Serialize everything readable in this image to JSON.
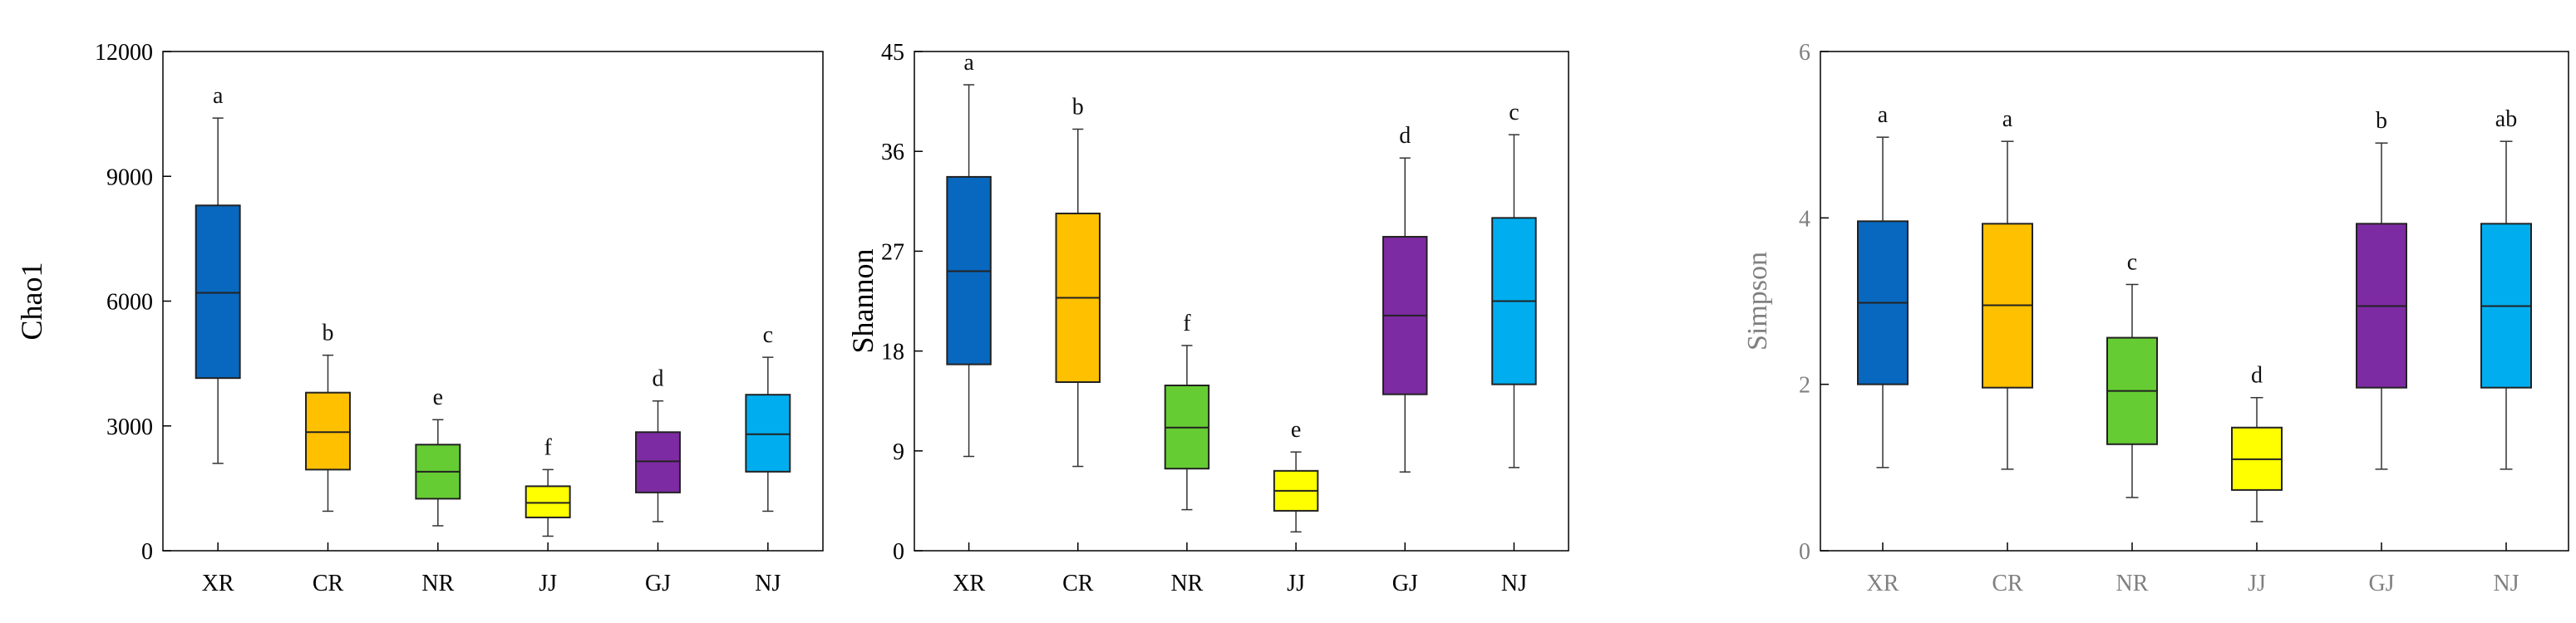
{
  "chart_data": [
    {
      "type": "boxplot",
      "ylabel": "Chao1",
      "ylim": [
        0,
        12000
      ],
      "yticks": [
        0,
        3000,
        6000,
        9000,
        12000
      ],
      "ytick_labels": [
        "0",
        "3000",
        "6000",
        "9000",
        "12000"
      ],
      "categories": [
        "XR",
        "CR",
        "NR",
        "JJ",
        "GJ",
        "NJ"
      ],
      "colors": [
        "#0868BF",
        "#FFC000",
        "#66CC33",
        "#FFFF00",
        "#7D2BA3",
        "#00AEEF"
      ],
      "boxes": [
        {
          "min": 2100,
          "q1": 4150,
          "median": 6200,
          "q3": 8300,
          "max": 10400,
          "letter": "a"
        },
        {
          "min": 950,
          "q1": 1950,
          "median": 2850,
          "q3": 3800,
          "max": 4700,
          "letter": "b"
        },
        {
          "min": 600,
          "q1": 1250,
          "median": 1900,
          "q3": 2550,
          "max": 3150,
          "letter": "e"
        },
        {
          "min": 350,
          "q1": 800,
          "median": 1150,
          "q3": 1550,
          "max": 1950,
          "letter": "f"
        },
        {
          "min": 700,
          "q1": 1400,
          "median": 2150,
          "q3": 2850,
          "max": 3600,
          "letter": "d"
        },
        {
          "min": 950,
          "q1": 1900,
          "median": 2800,
          "q3": 3750,
          "max": 4650,
          "letter": "c"
        }
      ]
    },
    {
      "type": "boxplot",
      "ylabel": "Shannon",
      "ylim": [
        0,
        45
      ],
      "yticks": [
        0,
        9,
        18,
        27,
        36,
        45
      ],
      "ytick_labels": [
        "0",
        "9",
        "18",
        "27",
        "36",
        "45"
      ],
      "categories": [
        "XR",
        "CR",
        "NR",
        "JJ",
        "GJ",
        "NJ"
      ],
      "colors": [
        "#0868BF",
        "#FFC000",
        "#66CC33",
        "#FFFF00",
        "#7D2BA3",
        "#00AEEF"
      ],
      "boxes": [
        {
          "min": 8.5,
          "q1": 16.8,
          "median": 25.2,
          "q3": 33.7,
          "max": 42.0,
          "letter": "a"
        },
        {
          "min": 7.6,
          "q1": 15.2,
          "median": 22.8,
          "q3": 30.4,
          "max": 38.0,
          "letter": "b"
        },
        {
          "min": 3.7,
          "q1": 7.4,
          "median": 11.1,
          "q3": 14.9,
          "max": 18.5,
          "letter": "f"
        },
        {
          "min": 1.7,
          "q1": 3.6,
          "median": 5.4,
          "q3": 7.2,
          "max": 8.9,
          "letter": "e"
        },
        {
          "min": 7.1,
          "q1": 14.1,
          "median": 21.2,
          "q3": 28.3,
          "max": 35.4,
          "letter": "d"
        },
        {
          "min": 7.5,
          "q1": 15.0,
          "median": 22.5,
          "q3": 30.0,
          "max": 37.5,
          "letter": "c"
        }
      ]
    },
    {
      "type": "boxplot",
      "ylabel": "Simpson",
      "ylim": [
        0,
        6
      ],
      "yticks": [
        0,
        2,
        4,
        6
      ],
      "ytick_labels": [
        "0",
        "2",
        "4",
        "6"
      ],
      "categories": [
        "XR",
        "CR",
        "NR",
        "JJ",
        "GJ",
        "NJ"
      ],
      "colors": [
        "#0868BF",
        "#FFC000",
        "#66CC33",
        "#FFFF00",
        "#7D2BA3",
        "#00AEEF"
      ],
      "boxes": [
        {
          "min": 1.0,
          "q1": 2.0,
          "median": 2.98,
          "q3": 3.96,
          "max": 4.97,
          "letter": "a"
        },
        {
          "min": 0.98,
          "q1": 1.96,
          "median": 2.95,
          "q3": 3.93,
          "max": 4.92,
          "letter": "a"
        },
        {
          "min": 0.64,
          "q1": 1.28,
          "median": 1.92,
          "q3": 2.56,
          "max": 3.2,
          "letter": "c"
        },
        {
          "min": 0.35,
          "q1": 0.73,
          "median": 1.1,
          "q3": 1.48,
          "max": 1.84,
          "letter": "d"
        },
        {
          "min": 0.98,
          "q1": 1.96,
          "median": 2.94,
          "q3": 3.93,
          "max": 4.9,
          "letter": "b"
        },
        {
          "min": 0.98,
          "q1": 1.96,
          "median": 2.94,
          "q3": 3.93,
          "max": 4.92,
          "letter": "ab"
        }
      ]
    }
  ]
}
